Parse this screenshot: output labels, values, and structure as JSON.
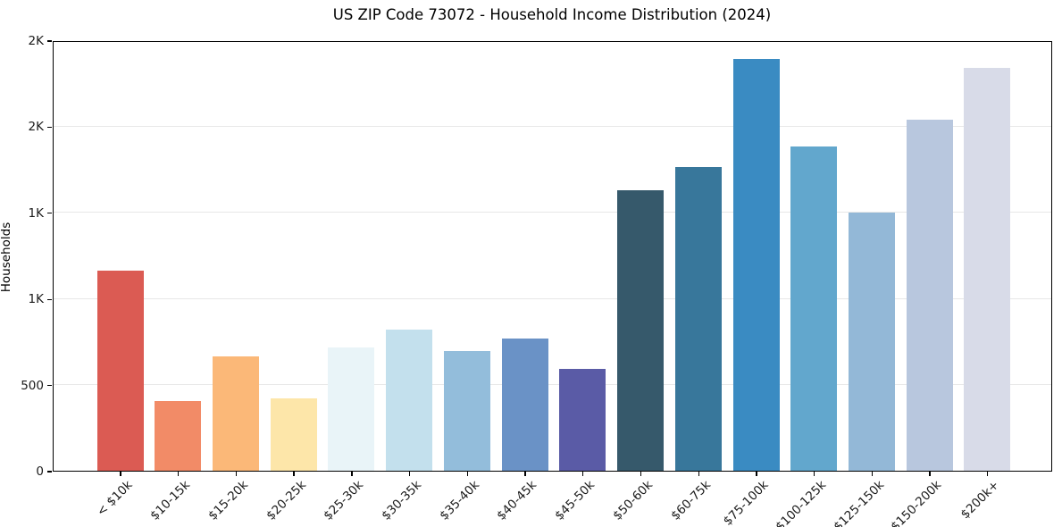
{
  "chart_data": {
    "type": "bar",
    "title": "US ZIP Code 73072 - Household Income Distribution (2024)",
    "xlabel": "",
    "ylabel": "Households",
    "categories": [
      "< $10k",
      "$10-15k",
      "$15-20k",
      "$20-25k",
      "$25-30k",
      "$30-35k",
      "$35-40k",
      "$40-45k",
      "$45-50k",
      "$50-60k",
      "$60-75k",
      "$75-100k",
      "$100-125k",
      "$125-150k",
      "$150-200k",
      "$200k+"
    ],
    "values": [
      1160,
      405,
      665,
      420,
      715,
      820,
      695,
      770,
      590,
      1630,
      1765,
      2390,
      1885,
      1500,
      2040,
      2340
    ],
    "bar_colors": [
      "#db5b53",
      "#f28b67",
      "#fbb878",
      "#fde6a9",
      "#e9f4f8",
      "#c3e0ed",
      "#93bddb",
      "#6a92c6",
      "#5a5ba6",
      "#36596b",
      "#38779b",
      "#3a8bc2",
      "#62a7cd",
      "#93b8d7",
      "#b8c7de",
      "#d8dbe8"
    ],
    "ylim": [
      0,
      2500
    ],
    "yticks": [
      {
        "value": 0,
        "label": "0"
      },
      {
        "value": 500,
        "label": "500"
      },
      {
        "value": 1000,
        "label": "1K"
      },
      {
        "value": 1500,
        "label": "1K"
      },
      {
        "value": 2000,
        "label": "2K"
      },
      {
        "value": 2500,
        "label": "2K"
      }
    ],
    "grid": "horizontal-only",
    "legend": "none",
    "x_tick_rotation_deg": 45,
    "colors": {
      "background": "#ffffff",
      "axis": "#000000",
      "gridline": "#e8e8e8",
      "text": "#1a1a1a"
    }
  }
}
